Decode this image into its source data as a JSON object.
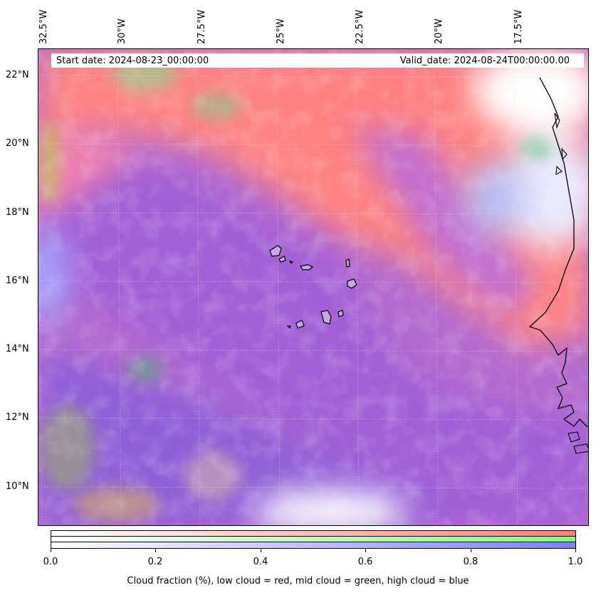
{
  "map": {
    "title_start": "Start date: 2024-08-23_00:00:00",
    "title_valid": "Valid_date: 2024-08-24T00:00:00.00",
    "longitude_labels": [
      "32.5°W",
      "30°W",
      "27.5°W",
      "25°W",
      "22.5°W",
      "20°W",
      "17.5°W"
    ],
    "latitude_labels": [
      "22°N",
      "20°N",
      "18°N",
      "16°N",
      "14°N",
      "12°N",
      "10°N"
    ],
    "extent": {
      "lon_min": -32.5,
      "lon_max": -15.5,
      "lat_min": 8.8,
      "lat_max": 22.8
    },
    "layers": [
      {
        "name": "low cloud",
        "color": "#ff7f7f"
      },
      {
        "name": "mid cloud",
        "color": "#7fff7f"
      },
      {
        "name": "high cloud",
        "color": "#7f7fff"
      }
    ],
    "features": [
      "coastline",
      "cape-verde-islands",
      "gridlines"
    ]
  },
  "colorbar": {
    "ticks": [
      "0.0",
      "0.2",
      "0.4",
      "0.6",
      "0.8",
      "1.0"
    ],
    "tick_values": [
      0.0,
      0.2,
      0.4,
      0.6,
      0.8,
      1.0
    ],
    "caption": "Cloud fraction (%), low cloud = red, mid cloud = green, high cloud = blue",
    "rows": [
      {
        "name": "low",
        "color": "#ff7f7f"
      },
      {
        "name": "mid",
        "color": "#7fff7f"
      },
      {
        "name": "high",
        "color": "#7f7fff"
      }
    ]
  }
}
